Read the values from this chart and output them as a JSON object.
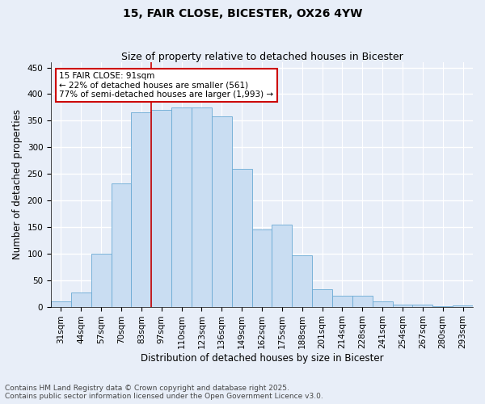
{
  "title": "15, FAIR CLOSE, BICESTER, OX26 4YW",
  "subtitle": "Size of property relative to detached houses in Bicester",
  "xlabel": "Distribution of detached houses by size in Bicester",
  "ylabel": "Number of detached properties",
  "categories": [
    "31sqm",
    "44sqm",
    "57sqm",
    "70sqm",
    "83sqm",
    "97sqm",
    "110sqm",
    "123sqm",
    "136sqm",
    "149sqm",
    "162sqm",
    "175sqm",
    "188sqm",
    "201sqm",
    "214sqm",
    "228sqm",
    "241sqm",
    "254sqm",
    "267sqm",
    "280sqm",
    "293sqm"
  ],
  "values": [
    10,
    26,
    100,
    232,
    365,
    370,
    375,
    375,
    358,
    260,
    146,
    155,
    97,
    33,
    21,
    21,
    10,
    4,
    4,
    1,
    2
  ],
  "bar_color": "#c9ddf2",
  "bar_edge_color": "#6aaad4",
  "background_color": "#e8eef8",
  "grid_color": "#ffffff",
  "vline_x_index": 4,
  "vline_color": "#cc0000",
  "annotation_text": "15 FAIR CLOSE: 91sqm\n← 22% of detached houses are smaller (561)\n77% of semi-detached houses are larger (1,993) →",
  "annotation_box_color": "#cc0000",
  "ylim": [
    0,
    460
  ],
  "yticks": [
    0,
    50,
    100,
    150,
    200,
    250,
    300,
    350,
    400,
    450
  ],
  "footer_line1": "Contains HM Land Registry data © Crown copyright and database right 2025.",
  "footer_line2": "Contains public sector information licensed under the Open Government Licence v3.0.",
  "title_fontsize": 10,
  "subtitle_fontsize": 9,
  "axis_label_fontsize": 8.5,
  "tick_fontsize": 7.5,
  "annotation_fontsize": 7.5,
  "footer_fontsize": 6.5
}
